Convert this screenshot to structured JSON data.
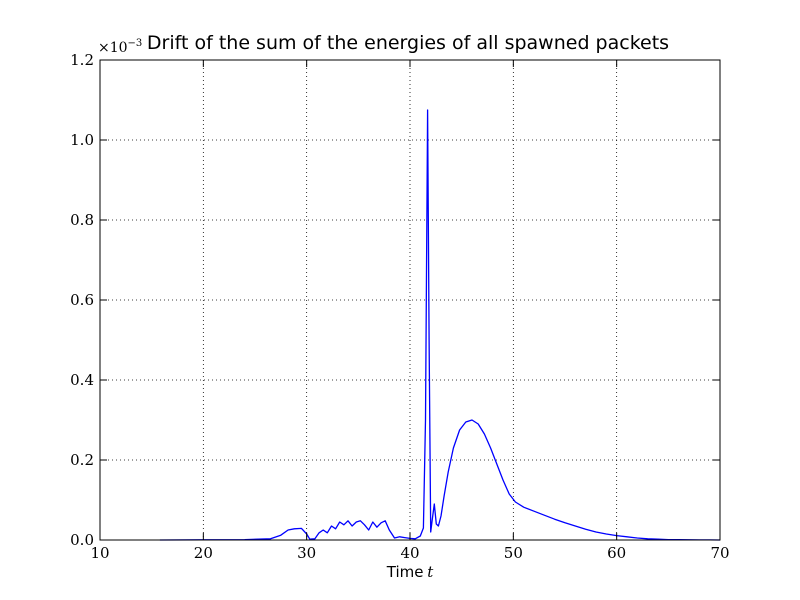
{
  "chart_data": {
    "type": "line",
    "title": "Drift of the sum of the energies of all spawned packets",
    "xlabel": "Time",
    "xlabel_var": "t",
    "ylabel": "",
    "y_multiplier": "×10",
    "y_multiplier_exp": "−3",
    "xlim": [
      10,
      70
    ],
    "ylim": [
      0.0,
      1.2
    ],
    "x_ticks": [
      10,
      20,
      30,
      40,
      50,
      60,
      70
    ],
    "x_tick_labels": [
      "10",
      "20",
      "30",
      "40",
      "50",
      "60",
      "70"
    ],
    "y_ticks": [
      0.0,
      0.2,
      0.4,
      0.6,
      0.8,
      1.0,
      1.2
    ],
    "y_tick_labels": [
      "0.0",
      "0.2",
      "0.4",
      "0.6",
      "0.8",
      "1.0",
      "1.2"
    ],
    "grid": true,
    "series": [
      {
        "color": "#0000ff",
        "x": [
          15.8,
          20,
          24,
          26.5,
          27.5,
          28.2,
          28.8,
          29.5,
          30,
          30.3,
          30.8,
          31.2,
          31.6,
          32,
          32.4,
          32.8,
          33.2,
          33.6,
          34,
          34.4,
          34.8,
          35.2,
          35.6,
          36,
          36.4,
          36.8,
          37.2,
          37.6,
          38,
          38.5,
          39,
          39.5,
          40,
          40.5,
          41,
          41.3,
          41.5,
          41.7,
          41.85,
          42.0,
          42.15,
          42.35,
          42.55,
          42.75,
          43.0,
          43.3,
          43.7,
          44.2,
          44.8,
          45.4,
          46.0,
          46.6,
          47.2,
          47.8,
          48.4,
          49.0,
          49.6,
          50.2,
          51,
          52,
          53,
          54,
          55,
          56,
          57,
          58,
          59,
          60,
          61,
          62,
          63,
          64,
          65,
          66,
          67,
          68,
          69,
          70
        ],
        "y": [
          0.0,
          0.0005,
          0.001,
          0.003,
          0.012,
          0.025,
          0.028,
          0.029,
          0.015,
          0.002,
          0.003,
          0.018,
          0.025,
          0.018,
          0.035,
          0.028,
          0.045,
          0.038,
          0.048,
          0.035,
          0.045,
          0.048,
          0.038,
          0.025,
          0.045,
          0.032,
          0.043,
          0.048,
          0.025,
          0.005,
          0.008,
          0.006,
          0.004,
          0.003,
          0.01,
          0.03,
          0.3,
          1.075,
          0.5,
          0.02,
          0.05,
          0.09,
          0.04,
          0.035,
          0.06,
          0.11,
          0.17,
          0.23,
          0.275,
          0.295,
          0.3,
          0.29,
          0.265,
          0.23,
          0.19,
          0.15,
          0.115,
          0.095,
          0.082,
          0.072,
          0.062,
          0.052,
          0.043,
          0.035,
          0.027,
          0.02,
          0.015,
          0.011,
          0.008,
          0.005,
          0.003,
          0.002,
          0.001,
          0.0008,
          0.0005,
          0.0003,
          0.0002,
          0.0001
        ]
      }
    ]
  }
}
